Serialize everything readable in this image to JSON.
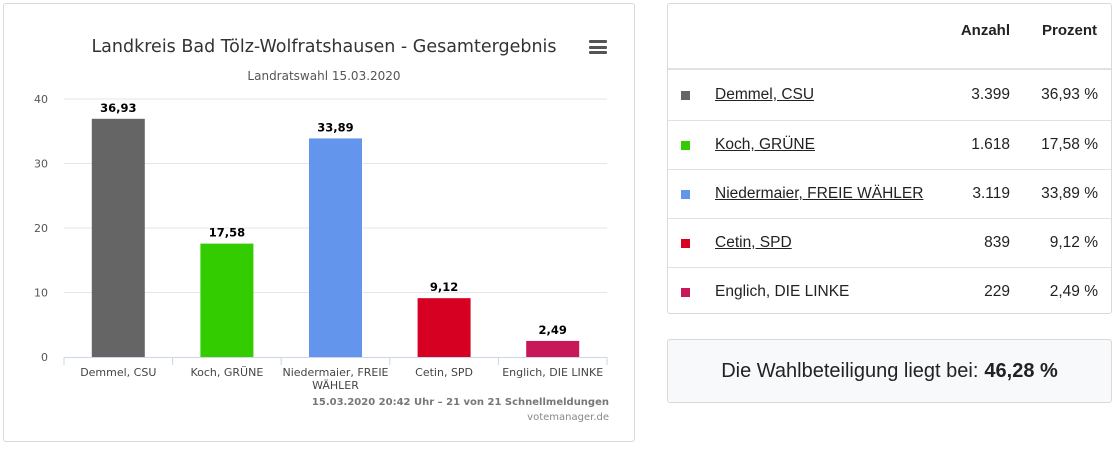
{
  "chart_data": {
    "type": "bar",
    "title": "Landkreis Bad Tölz-Wolfratshausen - Gesamtergebnis",
    "subtitle": "Landratswahl 15.03.2020",
    "categories": [
      "Demmel, CSU",
      "Koch, GRÜNE",
      "Niedermaier, FREIE WÄHLER",
      "Cetin, SPD",
      "Englich, DIE LINKE"
    ],
    "values": [
      36.93,
      17.58,
      33.89,
      9.12,
      2.49
    ],
    "value_labels": [
      "36,93",
      "17,58",
      "33,89",
      "9,12",
      "2,49"
    ],
    "colors": [
      "#656565",
      "#33cc00",
      "#6495ed",
      "#d50022",
      "#c9185a"
    ],
    "ylim": [
      0,
      40
    ],
    "yticks": [
      0,
      10,
      20,
      30,
      40
    ],
    "grid": true,
    "legend": "none",
    "xlabel": "",
    "ylabel": "",
    "footer": "15.03.2020 20:42 Uhr – 21 von 21 Schnellmeldungen",
    "credit": "votemanager.de"
  },
  "table": {
    "headers": {
      "anzahl": "Anzahl",
      "prozent": "Prozent"
    },
    "rows": [
      {
        "name": "Demmel, CSU",
        "count": "3.399",
        "percent": "36,93 %",
        "color": "#656565",
        "link": true
      },
      {
        "name": "Koch, GRÜNE",
        "count": "1.618",
        "percent": "17,58 %",
        "color": "#33cc00",
        "link": true
      },
      {
        "name": "Niedermaier, FREIE WÄHLER",
        "count": "3.119",
        "percent": "33,89 %",
        "color": "#6495ed",
        "link": true
      },
      {
        "name": "Cetin, SPD",
        "count": "839",
        "percent": "9,12 %",
        "color": "#d50022",
        "link": true
      },
      {
        "name": "Englich, DIE LINKE",
        "count": "229",
        "percent": "2,49 %",
        "color": "#c9185a",
        "link": false
      }
    ]
  },
  "turnout": {
    "label": "Die Wahlbeteiligung liegt bei:",
    "value": "46,28 %"
  },
  "icons": {
    "chart_menu": "hamburger-menu-icon"
  }
}
